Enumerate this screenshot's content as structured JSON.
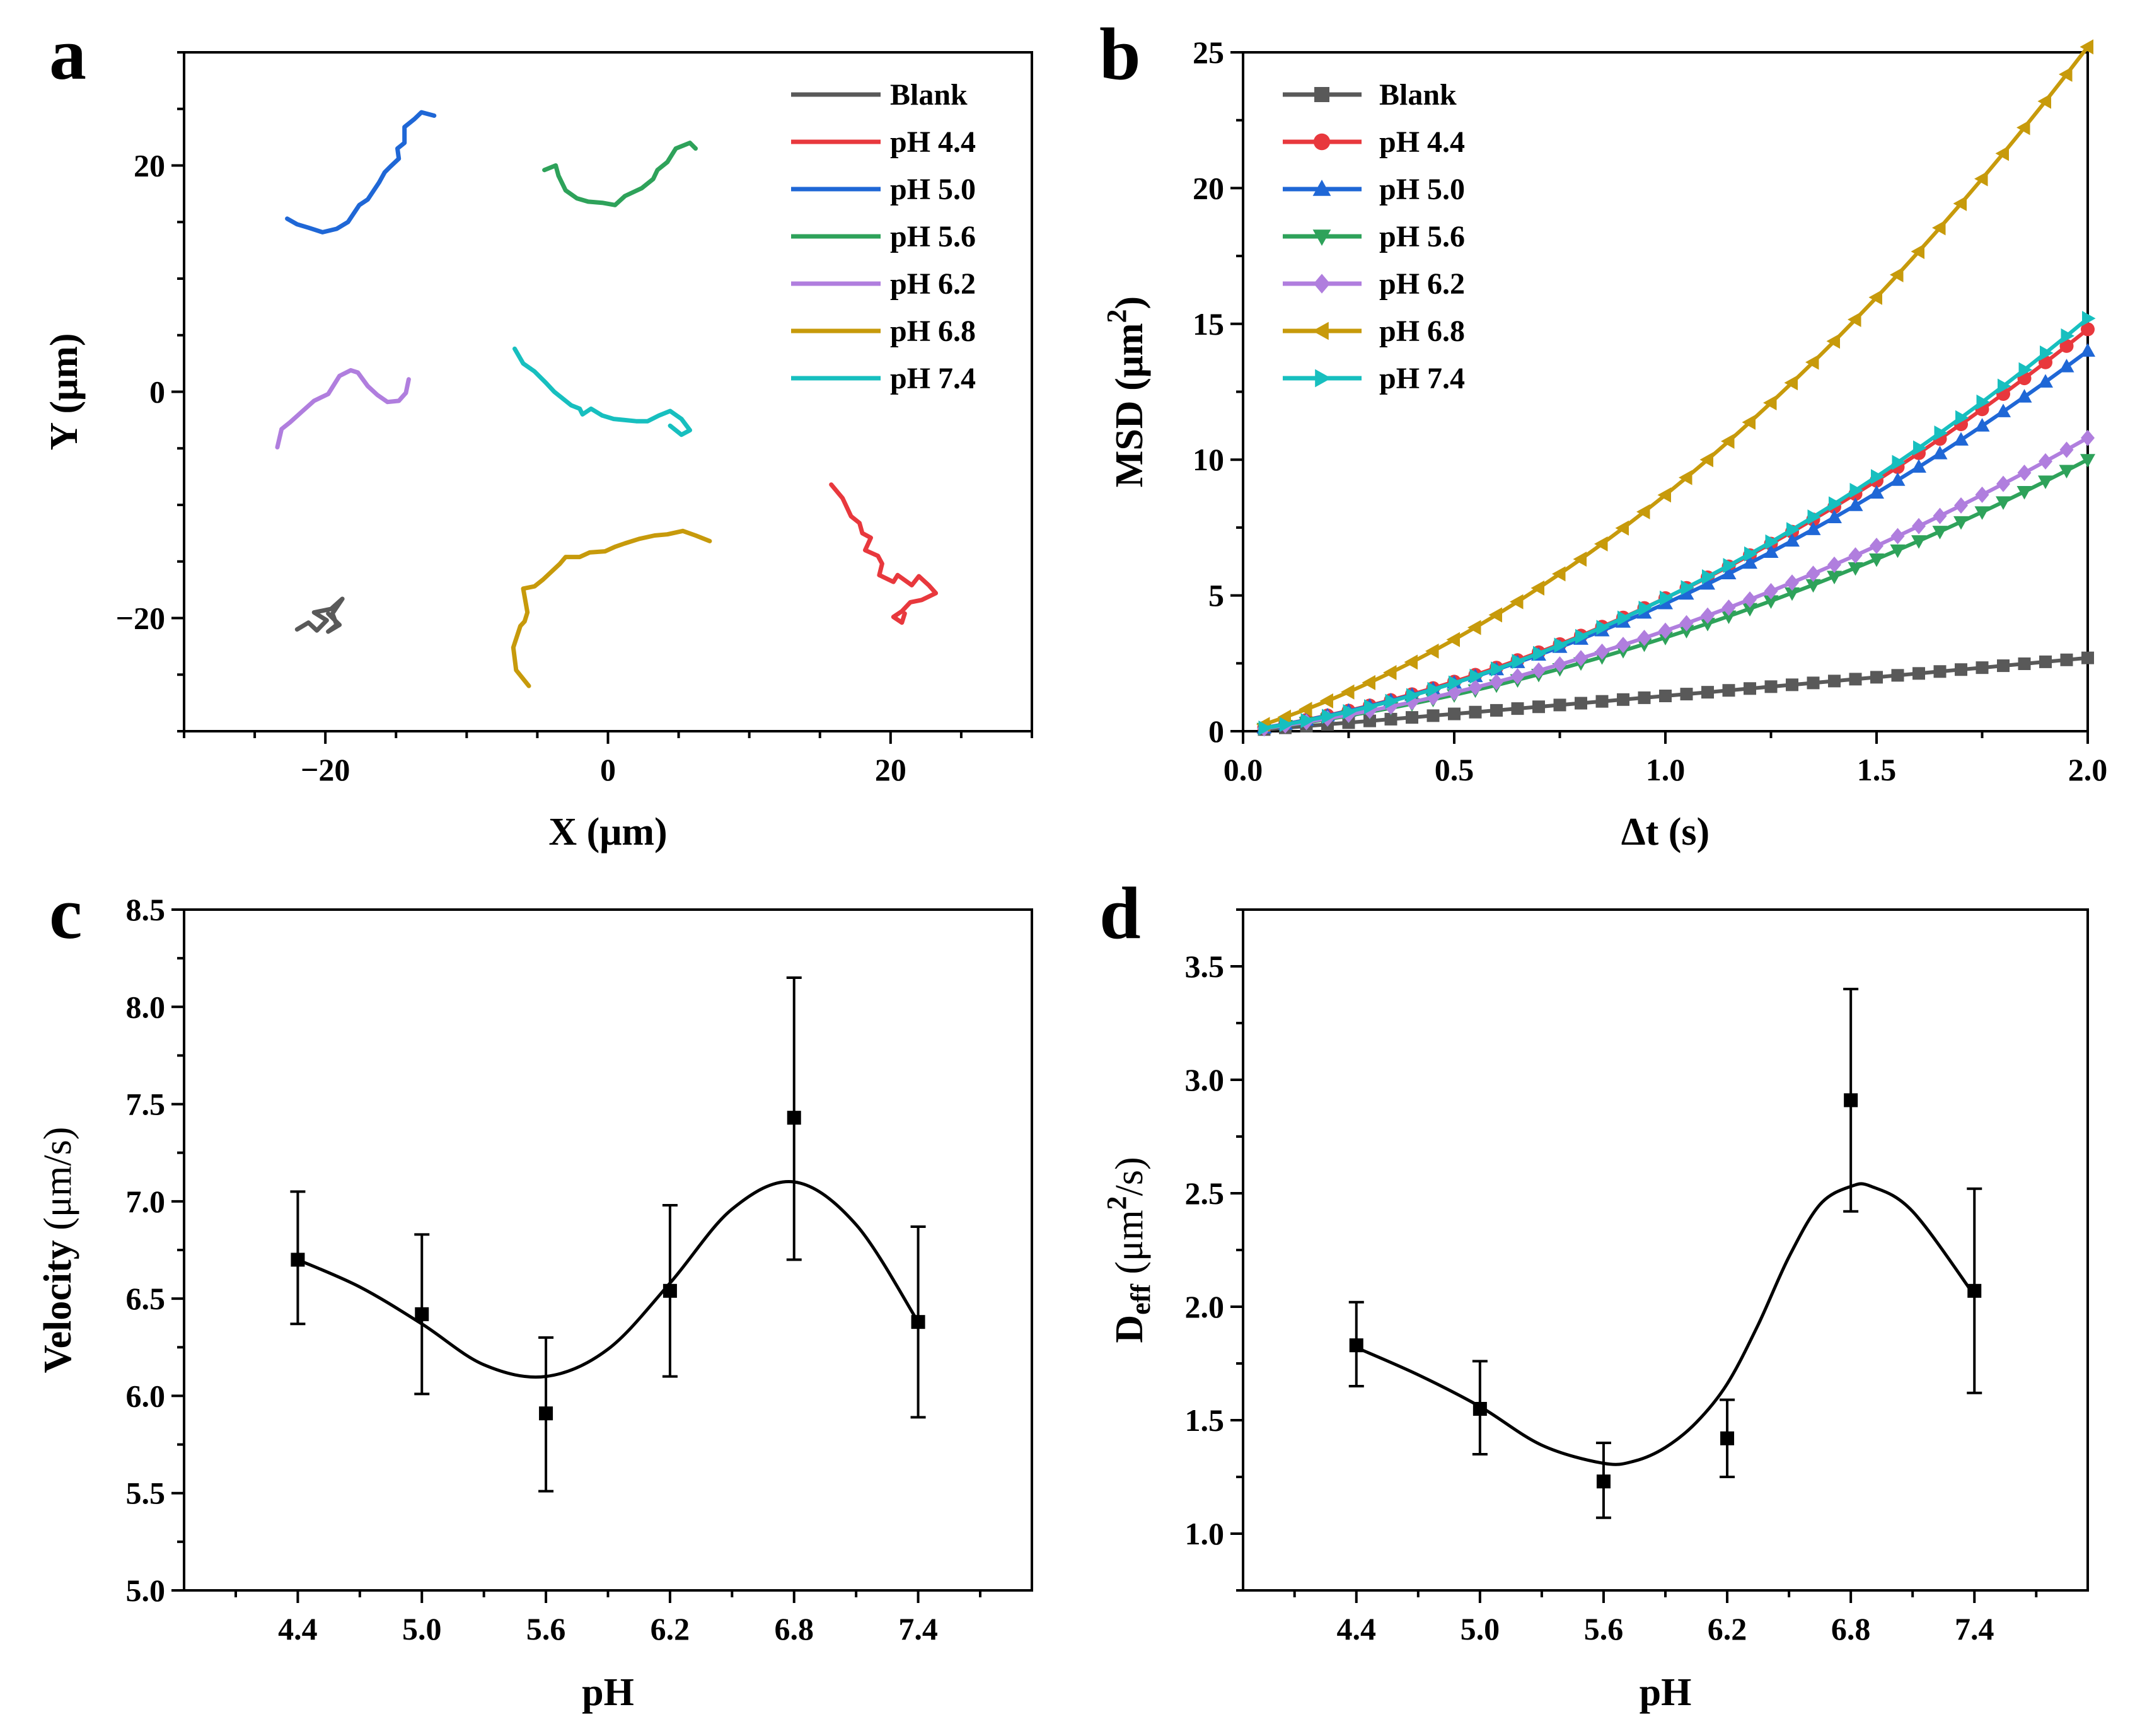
{
  "figure": {
    "panel_letters": [
      "a",
      "b",
      "c",
      "d"
    ]
  },
  "chart_data": [
    {
      "id": "a",
      "type": "line",
      "xlabel": "X (μm)",
      "ylabel": "Y (μm)",
      "xlim": [
        -30,
        30
      ],
      "ylim": [
        -30,
        30
      ],
      "xticks": [
        -20,
        0,
        20
      ],
      "yticks": [
        20,
        0,
        -20
      ],
      "xtick_labels": [
        "−20",
        "0",
        "20"
      ],
      "ytick_labels": [
        "20",
        "0",
        "−20"
      ],
      "legend": [
        "Blank",
        "pH 4.4",
        "pH 5.0",
        "pH 5.6",
        "pH 6.2",
        "pH 6.8",
        "pH 7.4"
      ],
      "legend_position": "top-right",
      "series": [
        {
          "name": "Blank",
          "color": "#595959",
          "x": [
            -22,
            -21.2,
            -20.6,
            -19.9,
            -20.8,
            -19.6,
            -18.8,
            -19.5,
            -19.2,
            -19.8,
            -19.0,
            -19.8
          ],
          "y": [
            -21,
            -20.4,
            -21.1,
            -20.2,
            -19.5,
            -19.2,
            -18.3,
            -19.6,
            -20.6,
            -21.2,
            -20.6,
            -19.6
          ]
        },
        {
          "name": "pH 4.4",
          "color": "#e8383d",
          "x": [
            15.8,
            16.6,
            17.2,
            17.8,
            18.0,
            18.6,
            18.2,
            19.1,
            19.4,
            19.2,
            20.2,
            20.5,
            21.5,
            22.0,
            22.7,
            23.2,
            22.2,
            21.4,
            20.8,
            20.2,
            20.8,
            21.0
          ],
          "y": [
            -8.2,
            -9.4,
            -11.0,
            -11.6,
            -12.5,
            -12.9,
            -14.0,
            -14.5,
            -15.2,
            -16.2,
            -16.8,
            -16.2,
            -17.1,
            -16.3,
            -17.1,
            -17.8,
            -18.4,
            -18.6,
            -19.4,
            -19.9,
            -20.4,
            -19.6
          ]
        },
        {
          "name": "pH 5.0",
          "color": "#1f67d6",
          "x": [
            -22.7,
            -22.0,
            -21.2,
            -20.2,
            -19.2,
            -18.4,
            -17.6,
            -17.0,
            -16.2,
            -15.8,
            -15.4,
            -14.8,
            -14.9,
            -14.4,
            -14.4,
            -13.7,
            -13.2,
            -12.3
          ],
          "y": [
            15.3,
            14.8,
            14.5,
            14.1,
            14.4,
            15.0,
            16.5,
            17.0,
            18.5,
            19.4,
            19.9,
            20.6,
            21.5,
            22.0,
            23.4,
            24.1,
            24.7,
            24.4
          ]
        },
        {
          "name": "pH 5.6",
          "color": "#2ea25a",
          "x": [
            -4.5,
            -3.7,
            -3.5,
            -3.0,
            -2.2,
            -1.4,
            -0.4,
            0.5,
            1.2,
            2.4,
            3.2,
            3.5,
            4.2,
            4.8,
            5.8,
            6.2
          ],
          "y": [
            19.6,
            20.0,
            19.1,
            17.8,
            17.1,
            16.8,
            16.7,
            16.5,
            17.3,
            18.0,
            18.8,
            19.6,
            20.3,
            21.5,
            22.0,
            21.5
          ]
        },
        {
          "name": "pH 6.2",
          "color": "#b07ede",
          "x": [
            -23.4,
            -23.1,
            -22.5,
            -21.7,
            -20.8,
            -19.8,
            -19.0,
            -18.2,
            -17.7,
            -17.0,
            -16.3,
            -15.6,
            -14.8,
            -14.3,
            -14.1
          ],
          "y": [
            -4.9,
            -3.3,
            -2.7,
            -1.8,
            -0.8,
            -0.2,
            1.4,
            1.9,
            1.7,
            0.5,
            -0.3,
            -0.9,
            -0.8,
            -0.1,
            1.1
          ]
        },
        {
          "name": "pH 6.8",
          "color": "#c79a0b",
          "x": [
            -5.6,
            -6.5,
            -6.7,
            -6.2,
            -5.9,
            -5.7,
            -5.8,
            -6.0,
            -5.2,
            -4.6,
            -3.4,
            -3.0,
            -2.0,
            -1.3,
            -0.2,
            0.5,
            1.2,
            2.2,
            3.3,
            4.2,
            5.3,
            6.2,
            7.2
          ],
          "y": [
            -26.0,
            -24.6,
            -22.6,
            -20.7,
            -20.3,
            -19.5,
            -18.8,
            -17.4,
            -17.2,
            -16.6,
            -15.2,
            -14.6,
            -14.6,
            -14.2,
            -14.1,
            -13.7,
            -13.4,
            -13.0,
            -12.7,
            -12.6,
            -12.3,
            -12.7,
            -13.2
          ]
        },
        {
          "name": "pH 7.4",
          "color": "#17bfbf",
          "x": [
            -6.6,
            -6.0,
            -5.2,
            -4.4,
            -3.8,
            -2.6,
            -2.0,
            -1.8,
            -1.2,
            -0.4,
            0.4,
            1.2,
            2.0,
            2.8,
            3.6,
            4.4,
            5.2,
            5.8,
            5.2,
            4.4
          ],
          "y": [
            3.8,
            2.5,
            1.8,
            0.8,
            0.0,
            -1.2,
            -1.5,
            -2.0,
            -1.5,
            -2.1,
            -2.4,
            -2.5,
            -2.6,
            -2.6,
            -2.1,
            -1.7,
            -2.4,
            -3.4,
            -3.8,
            -3.0
          ]
        }
      ]
    },
    {
      "id": "b",
      "type": "line",
      "xlabel": "Δt (s)",
      "ylabel": "MSD (μm²)",
      "ylabel_main": "MSD (μm",
      "ylabel_sup": "2",
      "ylabel_close": ")",
      "xlim": [
        0,
        2.0
      ],
      "ylim": [
        0,
        25
      ],
      "xticks": [
        0.0,
        0.5,
        1.0,
        1.5,
        2.0
      ],
      "yticks": [
        0,
        5,
        10,
        15,
        20,
        25
      ],
      "xtick_labels": [
        "0.0",
        "0.5",
        "1.0",
        "1.5",
        "2.0"
      ],
      "ytick_labels": [
        "0",
        "5",
        "10",
        "15",
        "20",
        "25"
      ],
      "legend": [
        "Blank",
        "pH 4.4",
        "pH 5.0",
        "pH 5.6",
        "pH 6.2",
        "pH 6.8",
        "pH 7.4"
      ],
      "legend_position": "top-left",
      "x_sampling": {
        "start": 0.05,
        "end": 2.0,
        "step": 0.05
      },
      "series": [
        {
          "name": "Blank",
          "color": "#595959",
          "marker": "square",
          "model": "y = 1.25*t + 0.05*t^2",
          "y_at_2s": 2.7
        },
        {
          "name": "pH 4.4",
          "color": "#e8383d",
          "marker": "circle",
          "model": "y = 2.4*t + 2.5*t^2",
          "y_at_2s": 14.6
        },
        {
          "name": "pH 5.0",
          "color": "#1f67d6",
          "marker": "triangle-up",
          "model": "y = 2.4*t + 2.3*t^2",
          "y_at_2s": 14.0
        },
        {
          "name": "pH 5.6",
          "color": "#2ea25a",
          "marker": "triangle-down",
          "model": "y = 1.9*t + 1.55*t^2",
          "y_at_2s": 10.0
        },
        {
          "name": "pH 6.2",
          "color": "#b07ede",
          "marker": "diamond",
          "model": "y = 2.0*t + 1.7*t^2",
          "y_at_2s": 10.8
        },
        {
          "name": "pH 6.8",
          "color": "#c79a0b",
          "marker": "triangle-left",
          "model": "y = 4.8*t + 3.9*t^2",
          "y_at_2s": 25.2
        },
        {
          "name": "pH 7.4",
          "color": "#17bfbf",
          "marker": "triangle-right",
          "model": "y = 2.2*t + 2.7*t^2",
          "y_at_2s": 15.2
        }
      ]
    },
    {
      "id": "c",
      "type": "scatter",
      "xlabel": "pH",
      "ylabel": "Velocity (μm/s)",
      "ylabel_bold": "Velocity",
      "ylabel_unit": " (μm/s)",
      "categories": [
        "4.4",
        "5.0",
        "5.6",
        "6.2",
        "6.8",
        "7.4"
      ],
      "x": [
        4.4,
        5.0,
        5.6,
        6.2,
        6.8,
        7.4
      ],
      "xlim": [
        3.85,
        7.95
      ],
      "ylim": [
        5.0,
        8.5
      ],
      "yticks": [
        5.0,
        5.5,
        6.0,
        6.5,
        7.0,
        7.5,
        8.0,
        8.5
      ],
      "ytick_labels": [
        "5.0",
        "5.5",
        "6.0",
        "6.5",
        "7.0",
        "7.5",
        "8.0",
        "8.5"
      ],
      "values": [
        6.7,
        6.42,
        5.91,
        6.54,
        7.43,
        6.38
      ],
      "err_low": [
        6.37,
        6.01,
        5.51,
        6.1,
        6.7,
        5.89
      ],
      "err_high": [
        7.05,
        6.83,
        6.3,
        6.98,
        8.15,
        6.87
      ],
      "fit_curve": {
        "x": [
          4.4,
          4.7,
          5.0,
          5.3,
          5.6,
          5.9,
          6.2,
          6.5,
          6.8,
          7.1,
          7.4
        ],
        "y": [
          6.7,
          6.56,
          6.37,
          6.16,
          6.1,
          6.24,
          6.58,
          6.96,
          7.1,
          6.88,
          6.38
        ]
      }
    },
    {
      "id": "d",
      "type": "scatter",
      "xlabel": "pH",
      "ylabel": "Deff (μm²/s)",
      "ylabel_main": "D",
      "ylabel_sub": "eff",
      "ylabel_unit1": " (μm",
      "ylabel_sup": "2",
      "ylabel_unit2": "/s)",
      "categories": [
        "4.4",
        "5.0",
        "5.6",
        "6.2",
        "6.8",
        "7.4"
      ],
      "x": [
        4.4,
        5.0,
        5.6,
        6.2,
        6.8,
        7.4
      ],
      "xlim": [
        3.85,
        7.95
      ],
      "ylim": [
        0.75,
        3.75
      ],
      "yticks": [
        1.0,
        1.5,
        2.0,
        2.5,
        3.0,
        3.5
      ],
      "ytick_labels": [
        "1.0",
        "1.5",
        "2.0",
        "2.5",
        "3.0",
        "3.5"
      ],
      "values": [
        1.83,
        1.55,
        1.23,
        1.42,
        2.91,
        2.07
      ],
      "err_low": [
        1.65,
        1.35,
        1.07,
        1.25,
        2.42,
        1.62
      ],
      "err_high": [
        2.02,
        1.76,
        1.4,
        1.59,
        3.4,
        2.52
      ],
      "fit_curve": {
        "x": [
          4.4,
          4.7,
          5.0,
          5.3,
          5.6,
          5.75,
          5.9,
          6.05,
          6.2,
          6.35,
          6.5,
          6.65,
          6.8,
          6.9,
          7.1,
          7.4
        ],
        "y": [
          1.82,
          1.7,
          1.56,
          1.39,
          1.31,
          1.32,
          1.38,
          1.49,
          1.66,
          1.92,
          2.22,
          2.45,
          2.53,
          2.53,
          2.42,
          2.05
        ]
      }
    }
  ]
}
